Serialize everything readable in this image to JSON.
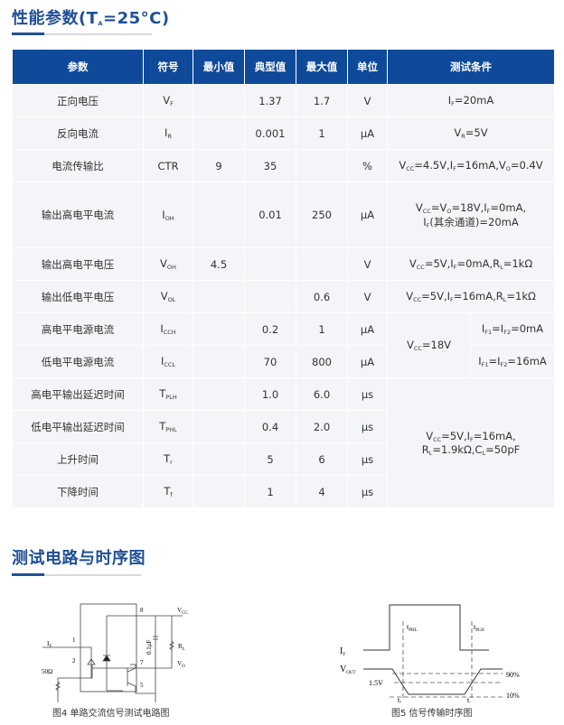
{
  "section1_title": "性能参数(T_{A}=25°C)",
  "section2_title": "测试电路与时序图",
  "table": {
    "headers": [
      "参数",
      "符号",
      "最小值",
      "典型值",
      "最大值",
      "单位",
      "测试条件"
    ],
    "rows": [
      {
        "param": "正向电压",
        "symbol": "V_{F}",
        "min": "",
        "typ": "1.37",
        "max": "1.7",
        "unit": "V",
        "cond": "I_{F}=20mA"
      },
      {
        "param": "反向电流",
        "symbol": "I_{R}",
        "min": "",
        "typ": "0.001",
        "max": "1",
        "unit": "μA",
        "cond": "V_{R}=5V"
      },
      {
        "param": "电流传输比",
        "symbol": "CTR",
        "min": "9",
        "typ": "35",
        "max": "",
        "unit": "%",
        "cond": "V_{CC}=4.5V,I_{F}=16mA,V_{O}=0.4V"
      },
      {
        "param": "输出高电平电流",
        "symbol": "I_{OH}",
        "min": "",
        "typ": "0.01",
        "max": "250",
        "unit": "μA",
        "cond": "V_{CC}=V_{O}=18V,I_{F}=0mA,\nI_{F}(其余通道)=20mA"
      },
      {
        "param": "输出高电平电压",
        "symbol": "V_{OH}",
        "min": "4.5",
        "typ": "",
        "max": "",
        "unit": "V",
        "cond": "V_{CC}=5V,I_{F}=0mA,R_{L}=1kΩ"
      },
      {
        "param": "输出低电平电压",
        "symbol": "V_{OL}",
        "min": "",
        "typ": "",
        "max": "0.6",
        "unit": "V",
        "cond": "V_{CC}=5V,I_{F}=16mA,R_{L}=1kΩ"
      },
      {
        "param": "高电平电源电流",
        "symbol": "I_{CCH}",
        "min": "",
        "typ": "0.2",
        "max": "1",
        "unit": "μA",
        "cond": "I_{F1}=I_{F2}=0mA"
      },
      {
        "param": "低电平电源电流",
        "symbol": "I_{CCL}",
        "min": "",
        "typ": "70",
        "max": "800",
        "unit": "μA",
        "cond": "I_{F1}=I_{F2}=16mA"
      },
      {
        "param": "高电平输出延迟时间",
        "symbol": "T_{PLH}",
        "min": "",
        "typ": "1.0",
        "max": "6.0",
        "unit": "μs"
      },
      {
        "param": "低电平输出延迟时间",
        "symbol": "T_{PHL}",
        "min": "",
        "typ": "0.4",
        "max": "2.0",
        "unit": "μs"
      },
      {
        "param": "上升时间",
        "symbol": "T_{r}",
        "min": "",
        "typ": "5",
        "max": "6",
        "unit": "μs"
      },
      {
        "param": "下降时间",
        "symbol": "T_{f}",
        "min": "",
        "typ": "1",
        "max": "4",
        "unit": "μs"
      }
    ],
    "supply_cond": "V_{CC}=18V",
    "timing_cond": "V_{CC}=5V,I_{F}=16mA,\nR_{L}=1.9kΩ,C_{L}=50pF"
  },
  "circuit": {
    "labels": {
      "if": "I_{F}",
      "pin1": "1",
      "pin2": "2",
      "pin8": "8",
      "pin7": "7",
      "pin5": "5",
      "vcc": "V_{CC}",
      "vo": "V_{O}",
      "rl": "R_{L}",
      "cap": "0.1μF",
      "r50": "50Ω"
    },
    "caption": "图4 单路交流信号测试电路图"
  },
  "timing": {
    "labels": {
      "if": "I_{F}",
      "vout": "V_{OUT}",
      "tphl": "t_{PHL}",
      "tplh": "t_{PLH}",
      "v15": "1.5V",
      "p90": "90%",
      "p10": "10%",
      "tf": "t_{f}",
      "tr": "t_{r}"
    },
    "caption": "图5 信号传输时序图"
  },
  "colors": {
    "accent": "#0f4a9a",
    "title": "#1f4f97",
    "cell_bg": "#f4f5f8"
  }
}
